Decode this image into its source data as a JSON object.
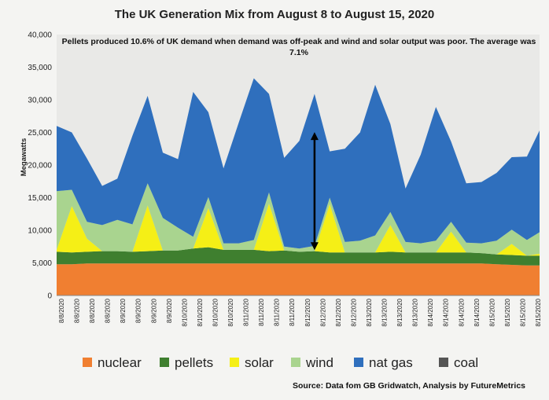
{
  "chart_data": {
    "type": "area",
    "stacked": true,
    "title": "The UK Generation Mix from August 8 to August 15, 2020",
    "annotation": "Pellets produced 10.6% of UK demand when demand was off-peak and wind and solar output was poor.  The average was 7.1%",
    "ylabel": "Megawatts",
    "ylim": [
      0,
      40000
    ],
    "yticks": [
      0,
      5000,
      10000,
      15000,
      20000,
      25000,
      30000,
      35000,
      40000
    ],
    "ytick_labels": [
      "0",
      "5,000",
      "10,000",
      "15,000",
      "20,000",
      "25,000",
      "30,000",
      "35,000",
      "40,000"
    ],
    "xtick_labels": [
      "8/8/2020",
      "8/8/2020",
      "8/8/2020",
      "8/8/2020",
      "8/9/2020",
      "8/9/2020",
      "8/9/2020",
      "8/9/2020",
      "8/10/2020",
      "8/10/2020",
      "8/10/2020",
      "8/10/2020",
      "8/11/2020",
      "8/11/2020",
      "8/11/2020",
      "8/11/2020",
      "8/12/2020",
      "8/12/2020",
      "8/12/2020",
      "8/12/2020",
      "8/13/2020",
      "8/13/2020",
      "8/13/2020",
      "8/13/2020",
      "8/14/2020",
      "8/14/2020",
      "8/14/2020",
      "8/14/2020",
      "8/15/2020",
      "8/15/2020",
      "8/15/2020",
      "8/15/2020"
    ],
    "x_hours": [
      0,
      6,
      12,
      18,
      24,
      30,
      36,
      42,
      48,
      54,
      60,
      66,
      72,
      78,
      84,
      90,
      96,
      102,
      108,
      114,
      120,
      126,
      132,
      138,
      144,
      150,
      156,
      162,
      168,
      174,
      180,
      186,
      191
    ],
    "grid": false,
    "legend_position": "bottom",
    "colors": {
      "nuclear": "#f07f31",
      "pellets": "#3f7f2f",
      "solar": "#f5ef16",
      "wind": "#a9d48f",
      "nat gas": "#2f6fbd",
      "coal": "#555555",
      "background": "#e9e9e7",
      "arrow": "#000000"
    },
    "series": [
      {
        "name": "nuclear",
        "values": [
          4800,
          4800,
          4900,
          4900,
          4900,
          4900,
          4900,
          4900,
          4900,
          4900,
          4900,
          4900,
          4900,
          4900,
          4900,
          4900,
          4900,
          4900,
          4900,
          4900,
          4900,
          4900,
          4900,
          4900,
          4900,
          4900,
          4900,
          4900,
          4900,
          4800,
          4700,
          4600,
          4600
        ]
      },
      {
        "name": "pellets",
        "values": [
          1900,
          1800,
          1800,
          1900,
          1900,
          1800,
          1900,
          2000,
          2000,
          2300,
          2500,
          2100,
          2100,
          2100,
          1900,
          2000,
          1800,
          1900,
          1700,
          1700,
          1700,
          1700,
          1800,
          1700,
          1700,
          1700,
          1700,
          1700,
          1600,
          1500,
          1500,
          1500,
          1500
        ]
      },
      {
        "name": "solar",
        "values": [
          300,
          7100,
          2000,
          0,
          0,
          0,
          7000,
          0,
          0,
          0,
          6000,
          0,
          0,
          0,
          7300,
          0,
          0,
          0,
          7400,
          0,
          0,
          0,
          4100,
          0,
          0,
          0,
          3200,
          0,
          0,
          0,
          1700,
          0,
          300
        ]
      },
      {
        "name": "wind",
        "values": [
          9000,
          2500,
          2600,
          4000,
          4800,
          4200,
          3400,
          5000,
          3500,
          1800,
          1700,
          1000,
          1000,
          1500,
          1700,
          600,
          500,
          800,
          1000,
          1600,
          1800,
          2600,
          2000,
          1600,
          1400,
          1800,
          1500,
          1500,
          1500,
          2100,
          2200,
          2400,
          3300
        ]
      },
      {
        "name": "nat gas",
        "values": [
          10000,
          8800,
          9700,
          6000,
          6300,
          13600,
          13400,
          10000,
          10500,
          22200,
          13000,
          11500,
          18500,
          24800,
          15100,
          13600,
          16500,
          23300,
          7100,
          14300,
          16600,
          23100,
          13500,
          8200,
          13600,
          20500,
          12300,
          9100,
          9400,
          10400,
          11100,
          12800,
          15600
        ]
      },
      {
        "name": "coal",
        "values": [
          0,
          0,
          0,
          0,
          0,
          0,
          0,
          0,
          0,
          0,
          0,
          0,
          0,
          0,
          0,
          0,
          0,
          0,
          0,
          0,
          0,
          0,
          0,
          0,
          0,
          0,
          0,
          0,
          0,
          0,
          0,
          0,
          0
        ]
      }
    ],
    "arrow": {
      "x_hour": 102,
      "y_from": 7200,
      "y_to": 24800
    },
    "source": "Source: Data fom GB Gridwatch, Analysis by FutureMetrics"
  }
}
